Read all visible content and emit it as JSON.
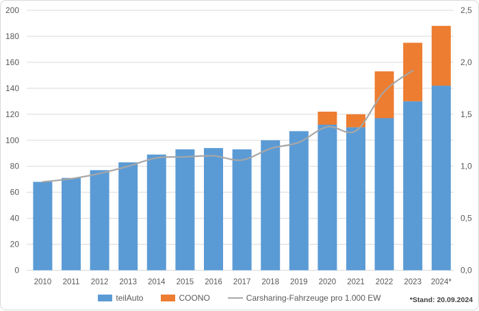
{
  "chart_data": {
    "type": "bar",
    "stacked": true,
    "categories": [
      "2010",
      "2011",
      "2012",
      "2013",
      "2014",
      "2015",
      "2016",
      "2017",
      "2018",
      "2019",
      "2020",
      "2021",
      "2022",
      "2023",
      "2024*"
    ],
    "series": [
      {
        "name": "teilAuto",
        "type": "bar",
        "axis": "left",
        "color": "#5B9BD5",
        "values": [
          68,
          71,
          77,
          83,
          89,
          93,
          94,
          93,
          100,
          107,
          112,
          110,
          117,
          130,
          142
        ]
      },
      {
        "name": "COONO",
        "type": "bar",
        "axis": "left",
        "color": "#ED7D31",
        "values": [
          0,
          0,
          0,
          0,
          0,
          0,
          0,
          0,
          0,
          0,
          10,
          10,
          36,
          45,
          46
        ]
      },
      {
        "name": "Carsharing-Fahrzeuge pro 1.000 EW",
        "type": "line",
        "axis": "right",
        "color": "#A6A6A6",
        "smooth": true,
        "values": [
          0.85,
          0.88,
          0.93,
          1.0,
          1.08,
          1.09,
          1.1,
          1.06,
          1.17,
          1.23,
          1.38,
          1.34,
          1.72,
          1.92,
          null
        ]
      }
    ],
    "left_axis": {
      "min": 0,
      "max": 200,
      "step": 20,
      "tick_labels": [
        "0",
        "20",
        "40",
        "60",
        "80",
        "100",
        "120",
        "140",
        "160",
        "180",
        "200"
      ]
    },
    "right_axis": {
      "min": 0,
      "max": 2.5,
      "step": 0.5,
      "tick_labels": [
        "0,0",
        "0,5",
        "1,0",
        "1,5",
        "2,0",
        "2,5"
      ]
    },
    "grid": true,
    "legend_position": "bottom",
    "footnote": "*Stand: 20.09.2024",
    "colors": {
      "grid": "#D9D9D9",
      "text": "#595959",
      "background": "#FFFFFF",
      "border": "#D9D9D9"
    }
  }
}
